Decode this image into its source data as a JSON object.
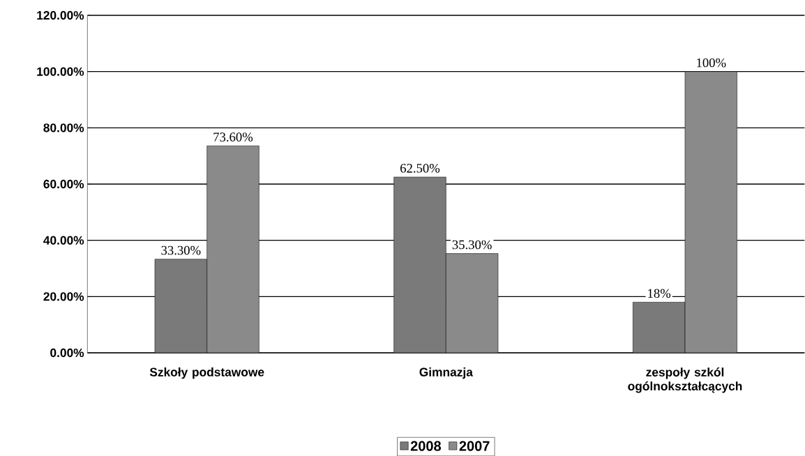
{
  "chart_data": {
    "type": "bar",
    "categories": [
      "Szkoły podstawowe",
      "Gimnazja",
      "zespoły szkól ogólnokształcących"
    ],
    "series": [
      {
        "name": "2008",
        "color": "#7a7a7a",
        "values": [
          33.3,
          62.5,
          18
        ],
        "value_labels": [
          "33.30%",
          "62.50%",
          "18%"
        ]
      },
      {
        "name": "2007",
        "color": "#8a8a8a",
        "values": [
          73.6,
          35.3,
          100
        ],
        "value_labels": [
          "73.60%",
          "35.30%",
          "100%"
        ]
      }
    ],
    "ylim": [
      0,
      120
    ],
    "yticks": [
      {
        "value": 0,
        "label": "0.00%"
      },
      {
        "value": 20,
        "label": "20.00%"
      },
      {
        "value": 40,
        "label": "40.00%"
      },
      {
        "value": 60,
        "label": "60.00%"
      },
      {
        "value": 80,
        "label": "80.00%"
      },
      {
        "value": 100,
        "label": "100.00%"
      },
      {
        "value": 120,
        "label": "120.00%"
      }
    ],
    "grid": "y",
    "legend": "bottom"
  }
}
